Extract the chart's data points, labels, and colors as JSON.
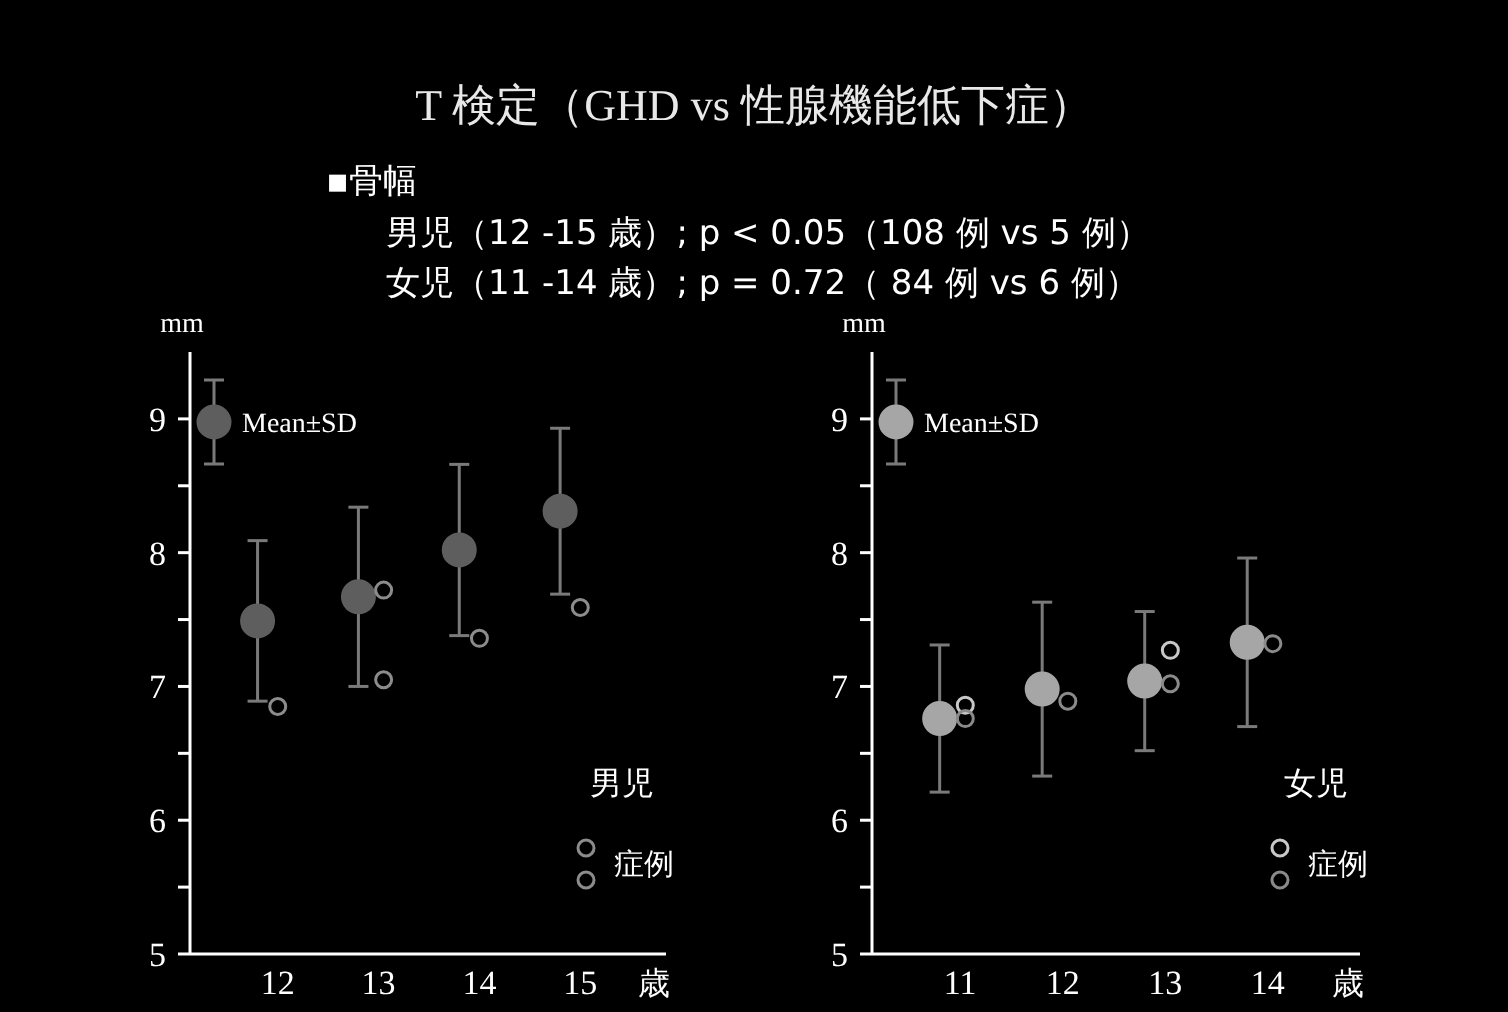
{
  "chart_data": [
    {
      "type": "other",
      "title": "T 検定（GHD vs 性腺機能低下症）",
      "subtitle": "▪骨幅",
      "annotations": [
        "男児（12 -15 歳）; p < 0.05（108 例 vs 5 例）",
        "女児（11 -14 歳）; p = 0.72（ 84 例 vs 6 例）"
      ]
    },
    {
      "type": "scatter",
      "xlabel": "歳",
      "ylabel": "mm",
      "xlim": [
        11.13,
        15.85
      ],
      "ylim": [
        5,
        9.5
      ],
      "xticks": [
        12,
        13,
        14,
        15
      ],
      "yticks": [
        5,
        {
          "value": 5.5,
          "label": null
        },
        6,
        {
          "value": 6.5,
          "label": null
        },
        7,
        {
          "value": 7.5,
          "label": null
        },
        8,
        {
          "value": 8.5,
          "label": null
        },
        9
      ],
      "legend": "top left",
      "marker": "circle",
      "annotations": [
        "男児"
      ],
      "series": [
        {
          "name": "Mean±SD",
          "color": "#5e5e5e",
          "x": [
            11.8,
            12.8,
            13.8,
            14.8
          ],
          "values": [
            7.49,
            7.67,
            8.02,
            8.31
          ],
          "errors": [
            0.6,
            0.67,
            0.64,
            0.62
          ]
        },
        {
          "name": "症例",
          "color": "#8c8c8c",
          "x": [
            12,
            13.05,
            13.05,
            14,
            15
          ],
          "values": [
            6.85,
            7.72,
            7.05,
            7.36,
            7.59
          ]
        }
      ]
    },
    {
      "type": "scatter",
      "xlabel": "歳",
      "ylabel": "mm",
      "xlim": [
        10.14,
        14.9
      ],
      "ylim": [
        5,
        9.5
      ],
      "xticks": [
        11,
        12,
        13,
        14
      ],
      "yticks": [
        5,
        {
          "value": 5.5,
          "label": null
        },
        6,
        {
          "value": 6.5,
          "label": null
        },
        7,
        {
          "value": 7.5,
          "label": null
        },
        8,
        {
          "value": 8.5,
          "label": null
        },
        9
      ],
      "legend": "top left",
      "marker": "circle",
      "annotations": [
        "女児"
      ],
      "series": [
        {
          "name": "Mean±SD",
          "color": "#a6a6a6",
          "x": [
            10.8,
            11.8,
            12.8,
            13.8
          ],
          "values": [
            6.76,
            6.98,
            7.04,
            7.33
          ],
          "errors": [
            0.55,
            0.65,
            0.52,
            0.63
          ]
        },
        {
          "name": "症例",
          "colors": [
            "#c8c8c8",
            "#8a8a8a",
            "#8a8a8a",
            "#c8c8c8",
            "#8a8a8a",
            "#8a8a8a"
          ],
          "x": [
            11.05,
            11.05,
            12.05,
            13.05,
            13.05,
            14.05
          ],
          "values": [
            6.86,
            6.76,
            6.89,
            7.27,
            7.02,
            7.32
          ]
        }
      ]
    }
  ]
}
